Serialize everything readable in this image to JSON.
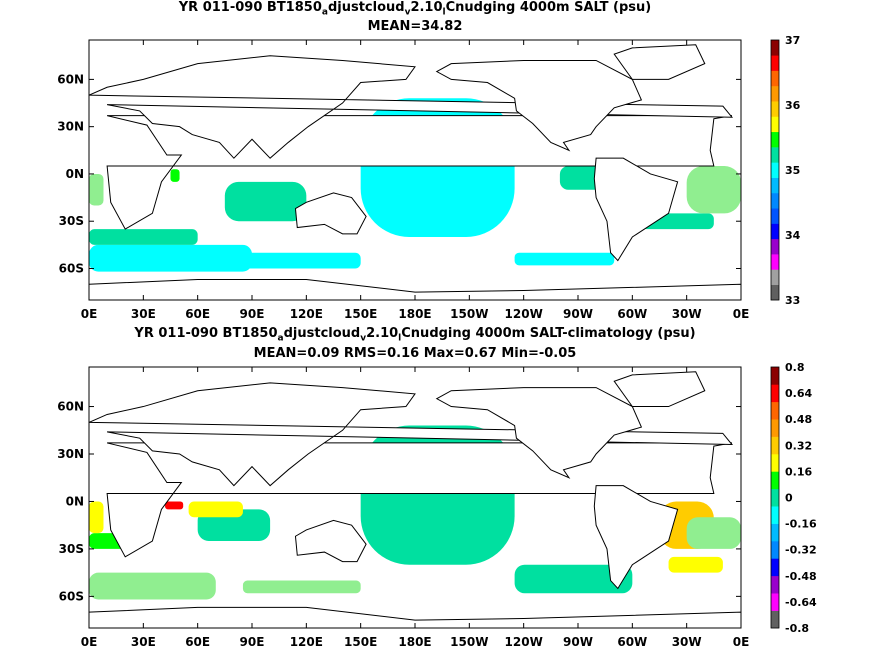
{
  "chart_data": [
    {
      "type": "heatmap",
      "title_line1_parts": [
        "YR 011-090 BT1850",
        "a",
        "djustcloud",
        "v",
        "2.10",
        "l",
        "Cnudging 4000m SALT (psu)"
      ],
      "title_line2": "MEAN=34.82",
      "x_ticks": [
        "0E",
        "30E",
        "60E",
        "90E",
        "120E",
        "150E",
        "180E",
        "150W",
        "120W",
        "90W",
        "60W",
        "30W",
        "0E"
      ],
      "y_ticks": [
        "60N",
        "30N",
        "0N",
        "30S",
        "60S"
      ],
      "y_tick_values": [
        60,
        30,
        0,
        -30,
        -60
      ],
      "xlim": [
        0,
        360
      ],
      "ylim": [
        -80,
        85
      ],
      "colorbar_ticks": [
        "37",
        "36",
        "35",
        "34",
        "33"
      ],
      "colorbar_range": [
        33,
        37
      ],
      "colorbar_colors": [
        "#606060",
        "#a0a0a0",
        "#ff00ff",
        "#9900cc",
        "#0000ff",
        "#0055ff",
        "#0088ff",
        "#00bbff",
        "#00ffff",
        "#00e0a0",
        "#00ff00",
        "#ffff00",
        "#ffcc00",
        "#ff9900",
        "#ff6600",
        "#ff0000",
        "#8b0000"
      ]
    },
    {
      "type": "heatmap",
      "title_line1_parts": [
        "YR 011-090 BT1850",
        "a",
        "djustcloud",
        "v",
        "2.10",
        "l",
        "Cnudging 4000m SALT-climatology (psu)"
      ],
      "title_line2": "MEAN=0.09   RMS=0.16   Max=0.67   Min=-0.05",
      "x_ticks": [
        "0E",
        "30E",
        "60E",
        "90E",
        "120E",
        "150E",
        "180E",
        "150W",
        "120W",
        "90W",
        "60W",
        "30W",
        "0E"
      ],
      "y_ticks": [
        "60N",
        "30N",
        "0N",
        "30S",
        "60S"
      ],
      "y_tick_values": [
        60,
        30,
        0,
        -30,
        -60
      ],
      "xlim": [
        0,
        360
      ],
      "ylim": [
        -80,
        85
      ],
      "colorbar_ticks": [
        "0.8",
        "0.64",
        "0.48",
        "0.32",
        "0.16",
        "0",
        "-0.16",
        "-0.32",
        "-0.48",
        "-0.64",
        "-0.8"
      ],
      "colorbar_range": [
        -0.8,
        0.8
      ],
      "colorbar_colors": [
        "#606060",
        "#ff00ff",
        "#9900cc",
        "#0000ff",
        "#0088ff",
        "#00bbff",
        "#00ffff",
        "#00e0a0",
        "#00ff00",
        "#ffff00",
        "#ffcc00",
        "#ff9900",
        "#ff6600",
        "#ff0000",
        "#8b0000"
      ]
    }
  ]
}
